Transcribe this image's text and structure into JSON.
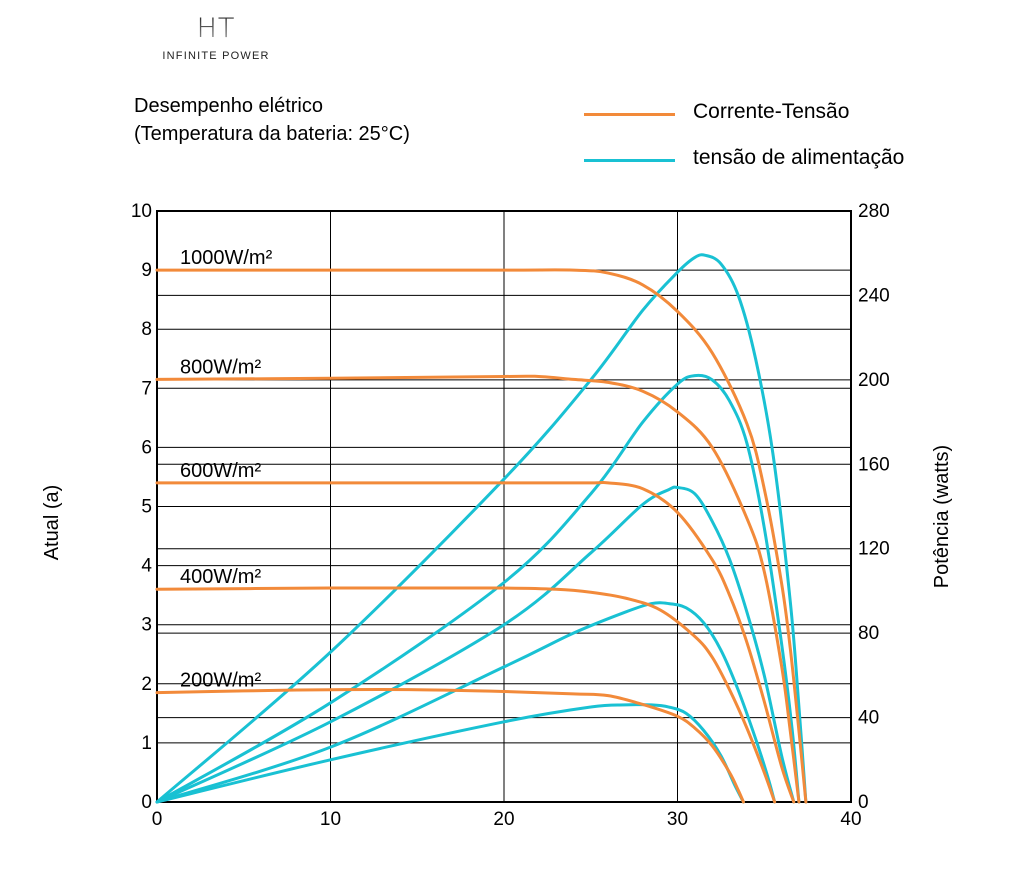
{
  "logo": {
    "mark": "HT",
    "tagline": "INFINITE POWER"
  },
  "colors": {
    "iv": "#f28a3a",
    "pv": "#19c1d3",
    "grid": "#000000"
  },
  "chart_data": {
    "type": "line",
    "title": "Desempenho elétrico",
    "subtitle": "(Temperatura da bateria: 25°C)",
    "ylabel": "Atual (a)",
    "y2label": "Potência (watts)",
    "xlabel": "",
    "xlim": [
      0,
      40
    ],
    "ylim": [
      0,
      10
    ],
    "y2lim": [
      0,
      280
    ],
    "xticks": [
      "0",
      "10",
      "20",
      "30",
      "40"
    ],
    "yticks": [
      "0",
      "1",
      "2",
      "3",
      "4",
      "5",
      "6",
      "7",
      "8",
      "9",
      "10"
    ],
    "y2ticks": [
      "0",
      "40",
      "80",
      "120",
      "160",
      "200",
      "240",
      "280"
    ],
    "grid": true,
    "legend": {
      "position": "top-right",
      "items": [
        {
          "label": "Corrente-Tensão",
          "color": "#f28a3a"
        },
        {
          "label": "tensão de alimentação",
          "color": "#19c1d3"
        }
      ]
    },
    "curve_labels": [
      "1000W/m²",
      "800W/m²",
      "600W/m²",
      "400W/m²",
      "200W/m²"
    ],
    "current_series": [
      {
        "irradiance": "1000W/m²",
        "x": [
          0,
          10,
          20,
          24,
          26,
          28,
          30,
          32,
          34,
          35,
          36,
          36.5,
          37,
          37.4
        ],
        "y": [
          9.0,
          9.0,
          9.0,
          9.0,
          8.95,
          8.75,
          8.3,
          7.6,
          6.4,
          5.3,
          3.7,
          2.6,
          1.2,
          0
        ]
      },
      {
        "irradiance": "800W/m²",
        "x": [
          0,
          10,
          20,
          22,
          24,
          26,
          28,
          30,
          32,
          34,
          35,
          36,
          36.5,
          37
        ],
        "y": [
          7.15,
          7.17,
          7.2,
          7.2,
          7.15,
          7.1,
          6.95,
          6.6,
          6.0,
          4.8,
          3.9,
          2.3,
          1.2,
          0
        ]
      },
      {
        "irradiance": "600W/m²",
        "x": [
          0,
          10,
          20,
          25,
          26,
          28,
          30,
          32,
          33,
          34,
          35,
          36,
          36.7
        ],
        "y": [
          5.4,
          5.4,
          5.4,
          5.4,
          5.4,
          5.3,
          4.9,
          4.1,
          3.5,
          2.7,
          1.7,
          0.6,
          0
        ]
      },
      {
        "irradiance": "400W/m²",
        "x": [
          0,
          10,
          15,
          20,
          23,
          25,
          27,
          29,
          31,
          32,
          33,
          34,
          35,
          35.6
        ],
        "y": [
          3.6,
          3.62,
          3.62,
          3.62,
          3.6,
          3.55,
          3.45,
          3.25,
          2.8,
          2.45,
          1.9,
          1.25,
          0.5,
          0
        ]
      },
      {
        "irradiance": "200W/m²",
        "x": [
          0,
          5,
          10,
          15,
          20,
          24,
          26,
          28,
          30,
          31,
          32,
          33,
          33.5,
          33.8
        ],
        "y": [
          1.85,
          1.88,
          1.9,
          1.9,
          1.87,
          1.83,
          1.8,
          1.65,
          1.45,
          1.25,
          0.95,
          0.5,
          0.2,
          0
        ]
      }
    ],
    "power_series": [
      {
        "irradiance": "1000W/m²",
        "x": [
          0,
          10,
          20,
          25,
          28,
          30,
          31,
          31.6,
          32.5,
          33.5,
          34.5,
          35.5,
          36.5,
          37,
          37.4
        ],
        "y": [
          0,
          71,
          153,
          200,
          233,
          251,
          258,
          259,
          255,
          240,
          210,
          165,
          95,
          45,
          0
        ]
      },
      {
        "irradiance": "800W/m²",
        "x": [
          0,
          10,
          20,
          25,
          28,
          30,
          31,
          32,
          33,
          34,
          35,
          36,
          36.6,
          37
        ],
        "y": [
          0,
          47,
          104,
          146,
          180,
          198,
          202,
          200,
          190,
          170,
          130,
          75,
          35,
          0
        ]
      },
      {
        "irradiance": "600W/m²",
        "x": [
          0,
          10,
          20,
          25,
          28,
          29.5,
          30,
          31,
          32,
          33,
          34,
          35,
          36,
          36.7
        ],
        "y": [
          0,
          38,
          84,
          118,
          141,
          148,
          149,
          146,
          133,
          115,
          90,
          60,
          22,
          0
        ]
      },
      {
        "irradiance": "400W/m²",
        "x": [
          0,
          10,
          20,
          24,
          27,
          28.5,
          29.5,
          30.5,
          31.5,
          32.5,
          33.5,
          34.5,
          35.2,
          35.6
        ],
        "y": [
          0,
          26,
          64,
          80,
          90,
          94,
          94,
          92,
          85,
          72,
          53,
          30,
          12,
          0
        ]
      },
      {
        "irradiance": "200W/m²",
        "x": [
          0,
          10,
          20,
          25,
          27,
          28.5,
          29.5,
          30.5,
          31.5,
          32.5,
          33.3,
          33.8
        ],
        "y": [
          0,
          20,
          38,
          45,
          46,
          46,
          45,
          42,
          34,
          22,
          8,
          0
        ]
      }
    ]
  }
}
